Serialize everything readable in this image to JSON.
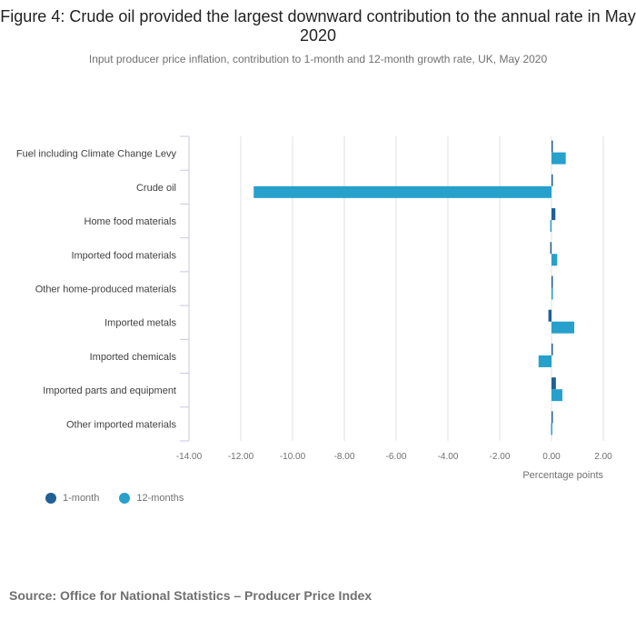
{
  "chart_data": {
    "type": "bar",
    "orientation": "horizontal",
    "title": "Figure 4: Crude oil provided the largest downward contribution to the annual rate in May 2020",
    "subtitle": "Input producer price inflation, contribution to 1-month and 12-month growth rate, UK, May 2020",
    "categories": [
      "Fuel including Climate Change Levy",
      "Crude oil",
      "Home food materials",
      "Imported food materials",
      "Other home-produced materials",
      "Imported metals",
      "Imported chemicals",
      "Imported parts and equipment",
      "Other imported materials"
    ],
    "series": [
      {
        "name": "1-month",
        "color": "#206095",
        "values": [
          0.0,
          0.05,
          0.15,
          -0.05,
          0.0,
          -0.12,
          0.0,
          0.17,
          0.05
        ]
      },
      {
        "name": "12-months",
        "color": "#27a0cc",
        "values": [
          0.55,
          -11.5,
          -0.05,
          0.22,
          0.02,
          0.88,
          -0.5,
          0.42,
          -0.02
        ]
      }
    ],
    "xlabel": "Percentage points",
    "xlim": [
      -14,
      2
    ],
    "xticks": [
      "-14.00",
      "-12.00",
      "-10.00",
      "-8.00",
      "-6.00",
      "-4.00",
      "-2.00",
      "0.00",
      "2.00"
    ],
    "grid": true,
    "legend_position": "bottom-left"
  },
  "source": "Source: Office for National Statistics – Producer Price Index"
}
